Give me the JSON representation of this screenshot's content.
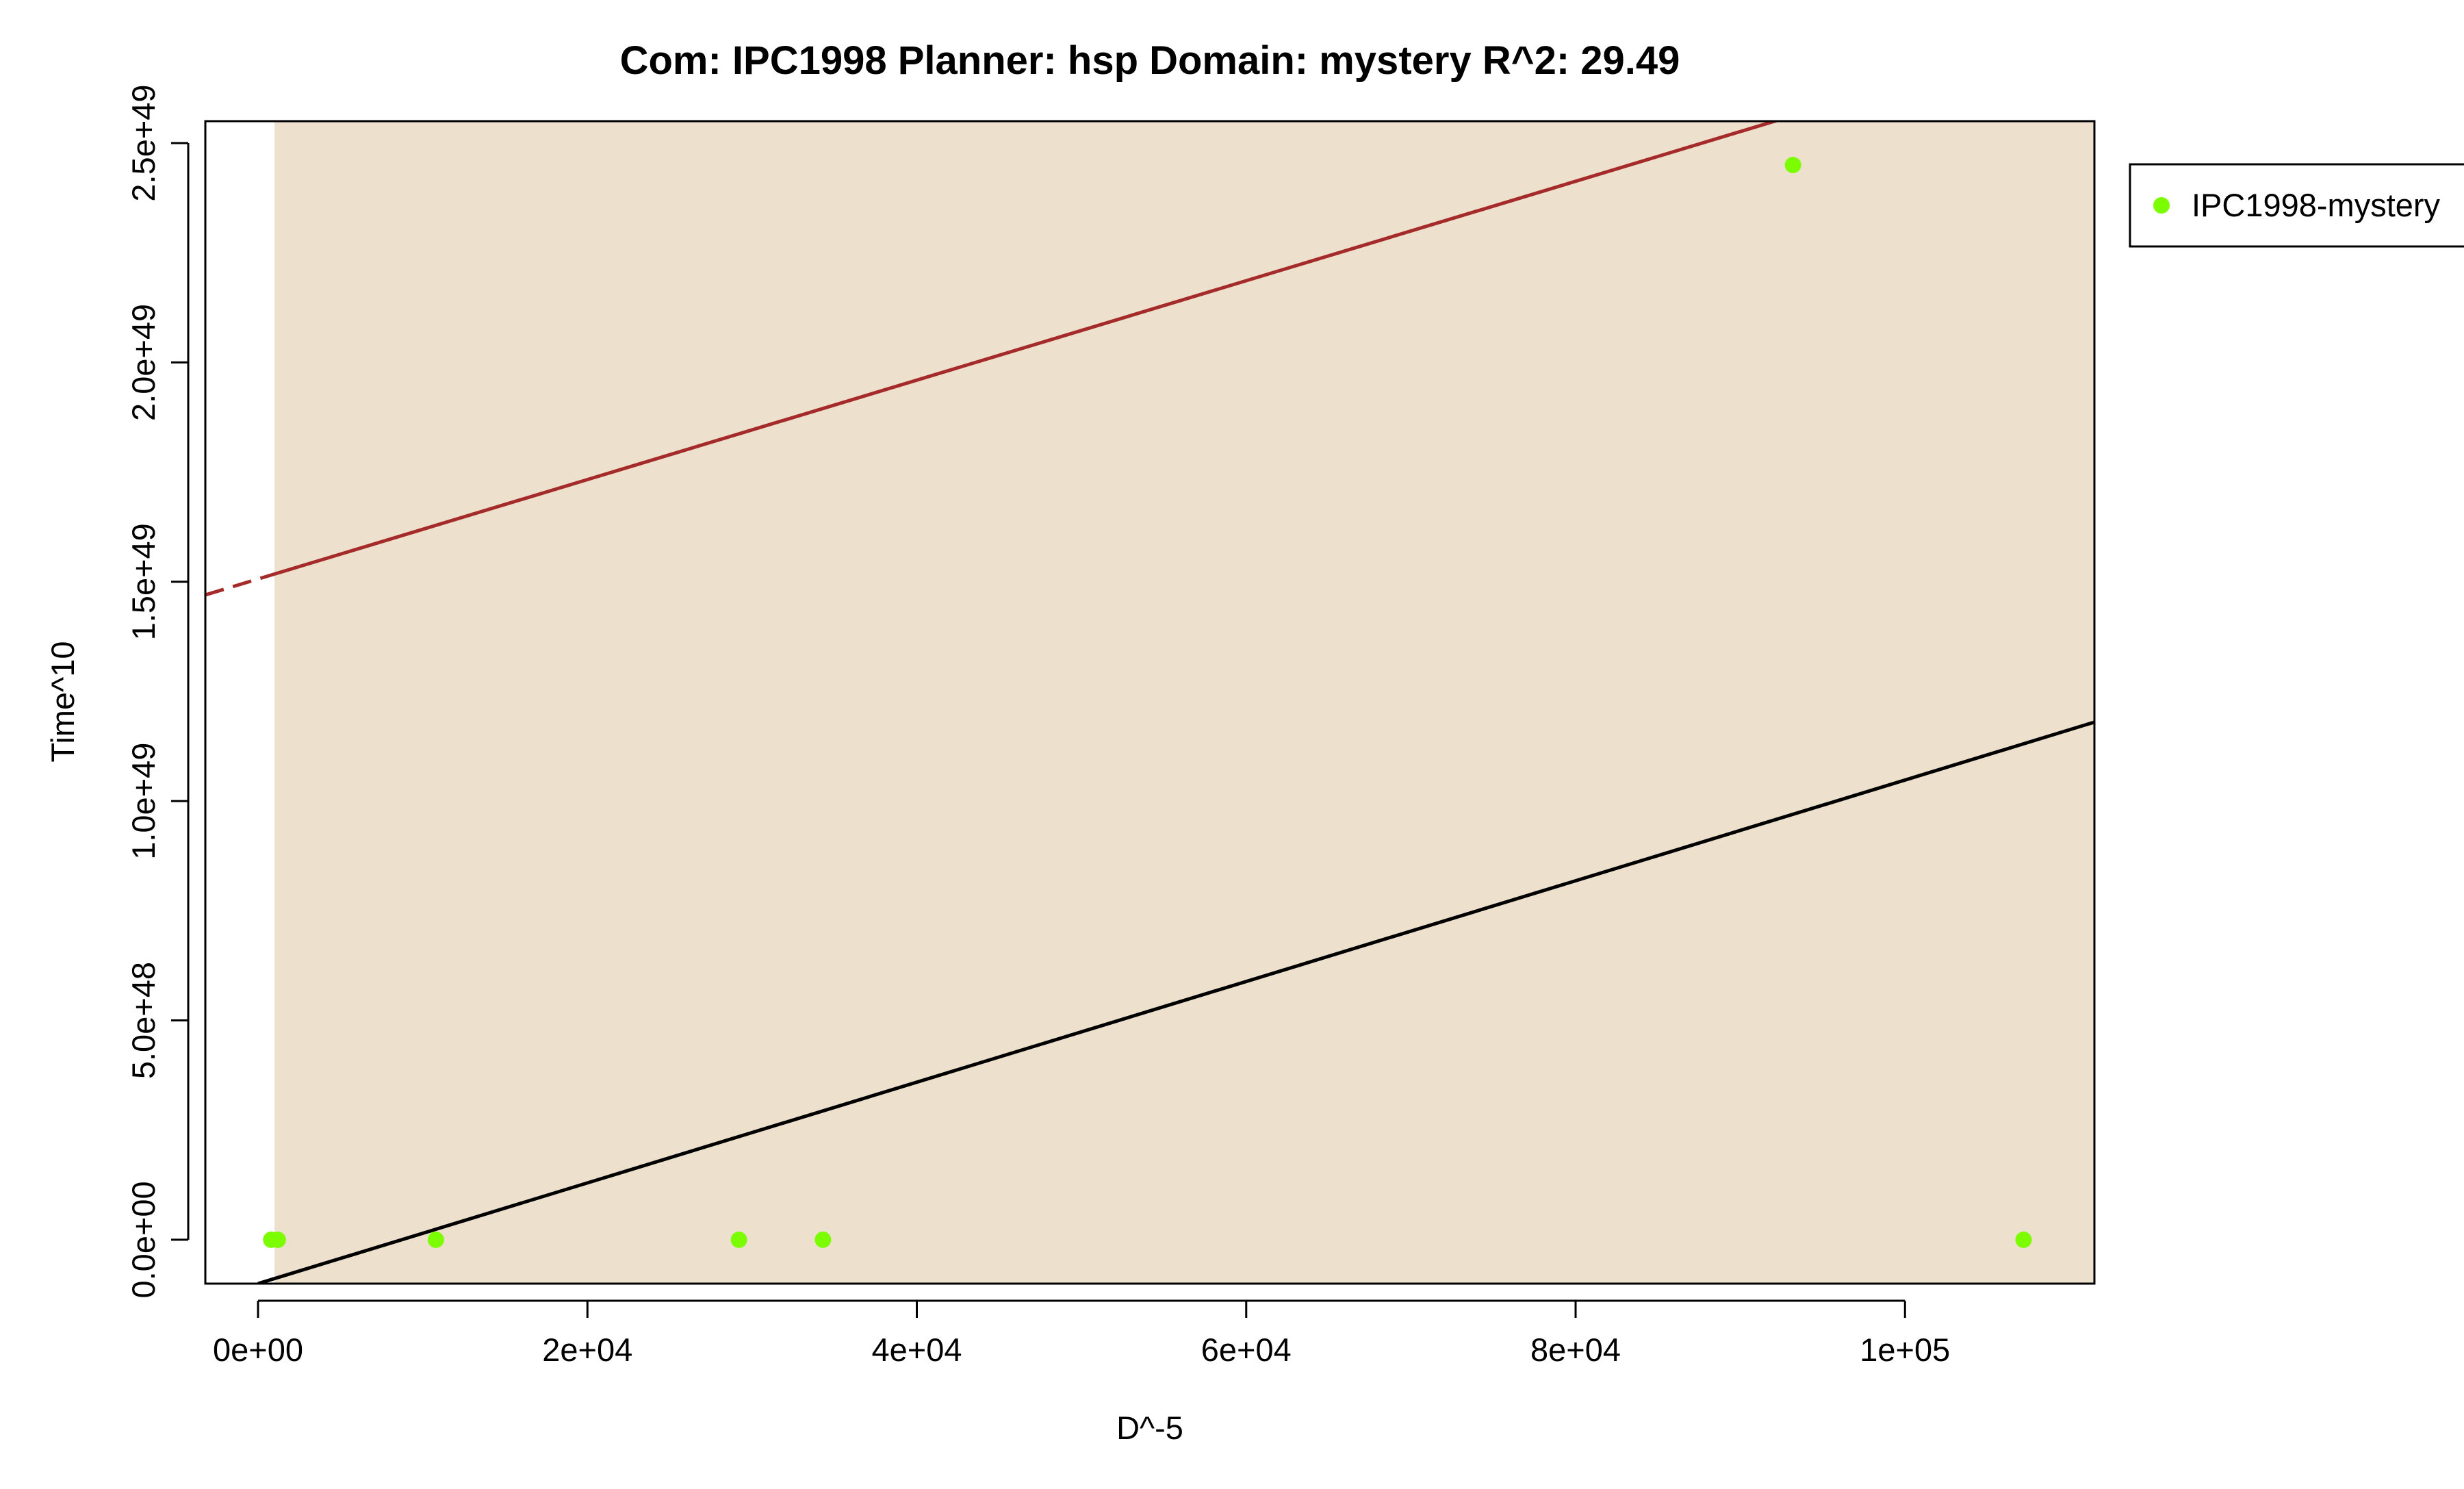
{
  "chart_data": {
    "type": "scatter",
    "title": "Com: IPC1998 Planner: hsp Domain: mystery R^2: 29.49",
    "xlabel": "D^-5",
    "ylabel": "Time^10",
    "xlim": [
      -3200,
      111500
    ],
    "ylim": [
      -1e+48,
      2.55e+49
    ],
    "x_ticks": [
      0,
      20000,
      40000,
      60000,
      80000,
      100000
    ],
    "x_tick_labels": [
      "0e+00",
      "2e+04",
      "4e+04",
      "6e+04",
      "8e+04",
      "1e+05"
    ],
    "y_ticks": [
      0,
      5e+48,
      1e+49,
      1.5e+49,
      2e+49,
      2.5e+49
    ],
    "y_tick_labels": [
      "0.0e+00",
      "5.0e+48",
      "1.0e+49",
      "1.5e+49",
      "2.0e+49",
      "2.5e+49"
    ],
    "grid": false,
    "legend_position": "right",
    "series": [
      {
        "name": "IPC1998-mystery",
        "color": "#7cfc00",
        "points": [
          {
            "x": 800,
            "y": 0
          },
          {
            "x": 1200,
            "y": 0
          },
          {
            "x": 10800,
            "y": 0
          },
          {
            "x": 29200,
            "y": 0
          },
          {
            "x": 34300,
            "y": 0
          },
          {
            "x": 93200,
            "y": 2.45e+49
          },
          {
            "x": 107200,
            "y": 0
          }
        ]
      }
    ],
    "fit_line": {
      "color": "#000000",
      "points": [
        [
          0,
          -1e+48
        ],
        [
          111500,
          1.18e+49
        ]
      ]
    },
    "upper_band_line": {
      "color": "#a52a2a",
      "points": [
        [
          -3200,
          1.47e+49
        ],
        [
          111500,
          2.77e+49
        ]
      ],
      "dashed_until_x": 1000
    },
    "shaded_region": {
      "color": "#ede0cd",
      "x_from": 1000
    }
  }
}
